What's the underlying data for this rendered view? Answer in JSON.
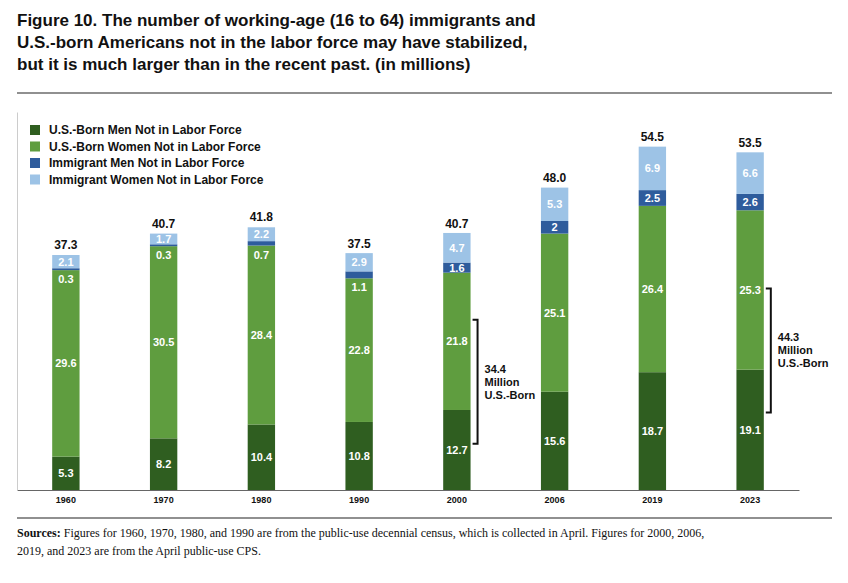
{
  "chart_data": {
    "type": "bar",
    "stacked": true,
    "data_labels": true,
    "tick_labels": "x",
    "grid": false,
    "legend": "top-left",
    "title": [
      "Figure 10. The number of working-age (16 to 64) immigrants and",
      "U.S.-born Americans not in the labor force may have stabilized,",
      "but it is much larger than in the recent past. (in millions)"
    ],
    "categories": [
      "1960",
      "1970",
      "1980",
      "1990",
      "2000",
      "2006",
      "2019",
      "2023"
    ],
    "series": [
      {
        "name": "U.S.-Born Men Not in Labor Force",
        "color": "#2f5e20",
        "values": [
          5.3,
          8.2,
          10.4,
          10.8,
          12.7,
          15.6,
          18.7,
          19.1
        ]
      },
      {
        "name": "U.S.-Born Women Not in Labor Force",
        "color": "#5f9d3f",
        "values": [
          29.6,
          30.5,
          28.4,
          22.8,
          21.8,
          25.1,
          26.4,
          25.3
        ]
      },
      {
        "name": "Immigrant Men Not in Labor Force",
        "color": "#2e5c9c",
        "values": [
          0.3,
          0.3,
          0.7,
          1.1,
          1.6,
          2,
          2.5,
          2.6
        ]
      },
      {
        "name": "Immigrant Women Not in Labor Force",
        "color": "#9dc3e6",
        "values": [
          2.1,
          1.7,
          2.2,
          2.9,
          4.7,
          5.3,
          6.9,
          6.6
        ]
      }
    ],
    "totals": {
      "values": [
        37.3,
        40.7,
        41.8,
        37.5,
        40.7,
        48.0,
        54.5,
        53.5
      ],
      "value_labels": [
        "37.3",
        "40.7",
        "41.8",
        "37.5",
        "40.7",
        "48.0",
        "54.5",
        "53.5"
      ]
    },
    "annotations": [
      {
        "category": "2000",
        "value": 34.4,
        "text": [
          "34.4",
          "Million",
          "U.S.-Born"
        ]
      },
      {
        "category": "2023",
        "value": 44.3,
        "text": [
          "44.3",
          "Million",
          "U.S.-Born"
        ]
      }
    ],
    "ylim": [
      0,
      60
    ],
    "yticks": [],
    "source": {
      "label": "Sources:",
      "text": [
        " Figures for 1960, 1970, 1980, and 1990 are from the public-use decennial census, which is collected in April. Figures for 2000, 2006,",
        "2019, and 2023 are from the April public-use CPS."
      ]
    }
  }
}
